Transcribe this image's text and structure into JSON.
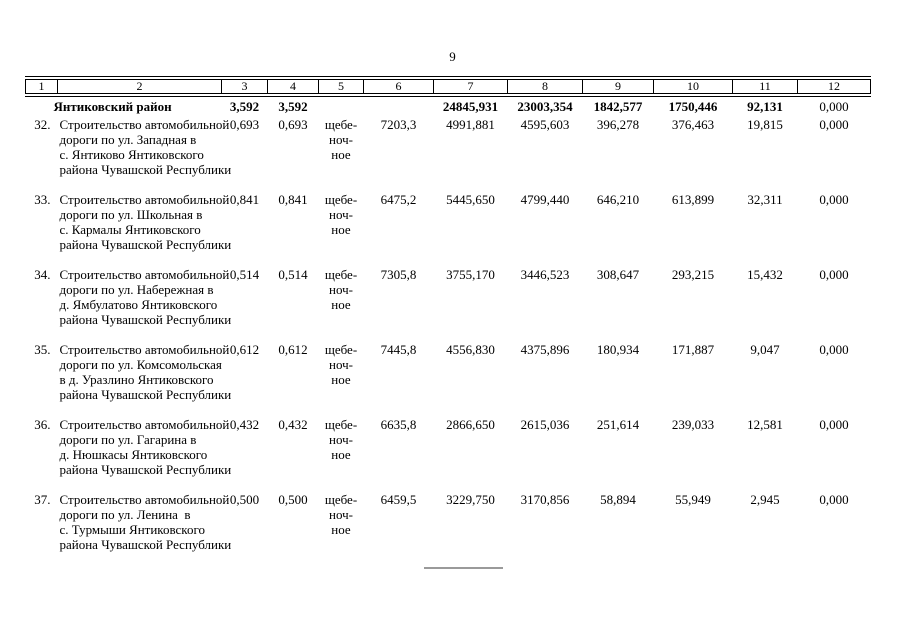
{
  "page_number": "9",
  "table": {
    "column_headers": [
      "1",
      "2",
      "3",
      "4",
      "5",
      "6",
      "7",
      "8",
      "9",
      "10",
      "11",
      "12"
    ],
    "summary": {
      "name": "Янтиковский район",
      "col3": "3,592",
      "col4": "3,592",
      "col5": "",
      "col6": "",
      "col7": "24845,931",
      "col8": "23003,354",
      "col9": "1842,577",
      "col10": "1750,446",
      "col11": "92,131",
      "col12": "0,000"
    },
    "rows": [
      {
        "num": "32.",
        "description_lines": [
          "Строительство автомобильной",
          "дороги по ул. Западная в",
          "с. Янтиково Янтиковского",
          "района Чувашской Республики"
        ],
        "col3": "0,693",
        "col4": "0,693",
        "surface_lines": [
          "щебе-",
          "ноч-",
          "ное"
        ],
        "col6": "7203,3",
        "col7": "4991,881",
        "col8": "4595,603",
        "col9": "396,278",
        "col10": "376,463",
        "col11": "19,815",
        "col12": "0,000"
      },
      {
        "num": "33.",
        "description_lines": [
          "Строительство автомобильной",
          "дороги по ул. Школьная в",
          "с. Кармалы Янтиковского",
          "района Чувашской Республики"
        ],
        "col3": "0,841",
        "col4": "0,841",
        "surface_lines": [
          "щебе-",
          "ноч-",
          "ное"
        ],
        "col6": "6475,2",
        "col7": "5445,650",
        "col8": "4799,440",
        "col9": "646,210",
        "col10": "613,899",
        "col11": "32,311",
        "col12": "0,000"
      },
      {
        "num": "34.",
        "description_lines": [
          "Строительство автомобильной",
          "дороги по ул. Набережная в",
          "д. Ямбулатово Янтиковского",
          "района Чувашской Республики"
        ],
        "col3": "0,514",
        "col4": "0,514",
        "surface_lines": [
          "щебе-",
          "ноч-",
          "ное"
        ],
        "col6": "7305,8",
        "col7": "3755,170",
        "col8": "3446,523",
        "col9": "308,647",
        "col10": "293,215",
        "col11": "15,432",
        "col12": "0,000"
      },
      {
        "num": "35.",
        "description_lines": [
          "Строительство автомобильной",
          "дороги по ул. Комсомольская",
          "в д. Уразлино Янтиковского",
          "района Чувашской Республики"
        ],
        "col3": "0,612",
        "col4": "0,612",
        "surface_lines": [
          "щебе-",
          "ноч-",
          "ное"
        ],
        "col6": "7445,8",
        "col7": "4556,830",
        "col8": "4375,896",
        "col9": "180,934",
        "col10": "171,887",
        "col11": "9,047",
        "col12": "0,000"
      },
      {
        "num": "36.",
        "description_lines": [
          "Строительство автомобильной",
          "дороги по ул. Гагарина в",
          "д. Нюшкасы Янтиковского",
          "района Чувашской Республики"
        ],
        "col3": "0,432",
        "col4": "0,432",
        "surface_lines": [
          "щебе-",
          "ноч-",
          "ное"
        ],
        "col6": "6635,8",
        "col7": "2866,650",
        "col8": "2615,036",
        "col9": "251,614",
        "col10": "239,033",
        "col11": "12,581",
        "col12": "0,000"
      },
      {
        "num": "37.",
        "description_lines": [
          "Строительство автомобильной",
          "дороги по ул. Ленина  в",
          "с. Турмыши Янтиковского",
          "района Чувашской Республики"
        ],
        "col3": "0,500",
        "col4": "0,500",
        "surface_lines": [
          "щебе-",
          "ноч-",
          "ное"
        ],
        "col6": "6459,5",
        "col7": "3229,750",
        "col8": "3170,856",
        "col9": "58,894",
        "col10": "55,949",
        "col11": "2,945",
        "col12": "0,000"
      }
    ]
  }
}
